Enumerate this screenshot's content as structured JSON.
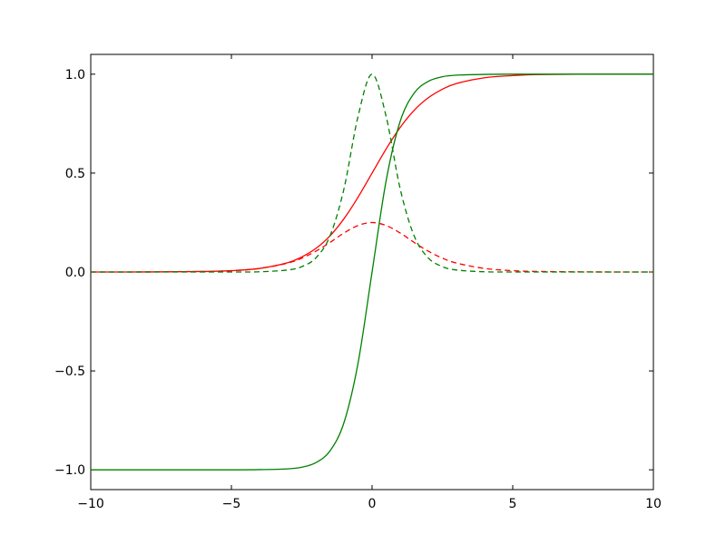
{
  "chart_data": {
    "type": "line",
    "title": "",
    "xlabel": "",
    "ylabel": "",
    "xlim": [
      -10,
      10
    ],
    "ylim": [
      -1.1,
      1.1
    ],
    "grid": false,
    "legend": "none",
    "xticks": [
      {
        "value": -10,
        "label": "−10"
      },
      {
        "value": -5,
        "label": "−5"
      },
      {
        "value": 0,
        "label": "0"
      },
      {
        "value": 5,
        "label": "5"
      },
      {
        "value": 10,
        "label": "10"
      }
    ],
    "yticks": [
      {
        "value": -1.0,
        "label": "−1.0"
      },
      {
        "value": -0.5,
        "label": "−0.5"
      },
      {
        "value": 0.0,
        "label": "0.0"
      },
      {
        "value": 0.5,
        "label": "0.5"
      },
      {
        "value": 1.0,
        "label": "1.0"
      }
    ],
    "x": [
      -10,
      -8,
      -6,
      -5,
      -4,
      -3,
      -2.5,
      -2,
      -1.5,
      -1,
      -0.5,
      0,
      0.5,
      1,
      1.5,
      2,
      2.5,
      3,
      4,
      5,
      6,
      8,
      10
    ],
    "series": [
      {
        "color": "#ff0000",
        "linestyle": "solid",
        "values": [
          0.0,
          0.0003,
          0.0025,
          0.0067,
          0.018,
          0.047,
          0.076,
          0.119,
          0.182,
          0.269,
          0.378,
          0.5,
          0.622,
          0.731,
          0.818,
          0.881,
          0.924,
          0.953,
          0.982,
          0.993,
          0.998,
          1.0,
          1.0
        ]
      },
      {
        "color": "#ff0000",
        "linestyle": "dashed",
        "values": [
          0.0,
          0.0003,
          0.0025,
          0.0066,
          0.018,
          0.045,
          0.07,
          0.105,
          0.149,
          0.197,
          0.235,
          0.25,
          0.235,
          0.197,
          0.149,
          0.105,
          0.07,
          0.045,
          0.018,
          0.0066,
          0.0025,
          0.0003,
          0.0
        ]
      },
      {
        "color": "#008000",
        "linestyle": "solid",
        "values": [
          -1.0,
          -1.0,
          -1.0,
          -1.0,
          -0.999,
          -0.995,
          -0.987,
          -0.964,
          -0.905,
          -0.762,
          -0.462,
          0.0,
          0.462,
          0.762,
          0.905,
          0.964,
          0.987,
          0.995,
          0.999,
          1.0,
          1.0,
          1.0,
          1.0
        ]
      },
      {
        "color": "#008000",
        "linestyle": "dashed",
        "values": [
          0.0,
          0.0,
          0.0,
          0.0,
          0.001,
          0.01,
          0.027,
          0.071,
          0.181,
          0.42,
          0.786,
          1.0,
          0.786,
          0.42,
          0.181,
          0.071,
          0.027,
          0.01,
          0.001,
          0.0,
          0.0,
          0.0,
          0.0
        ]
      }
    ]
  }
}
